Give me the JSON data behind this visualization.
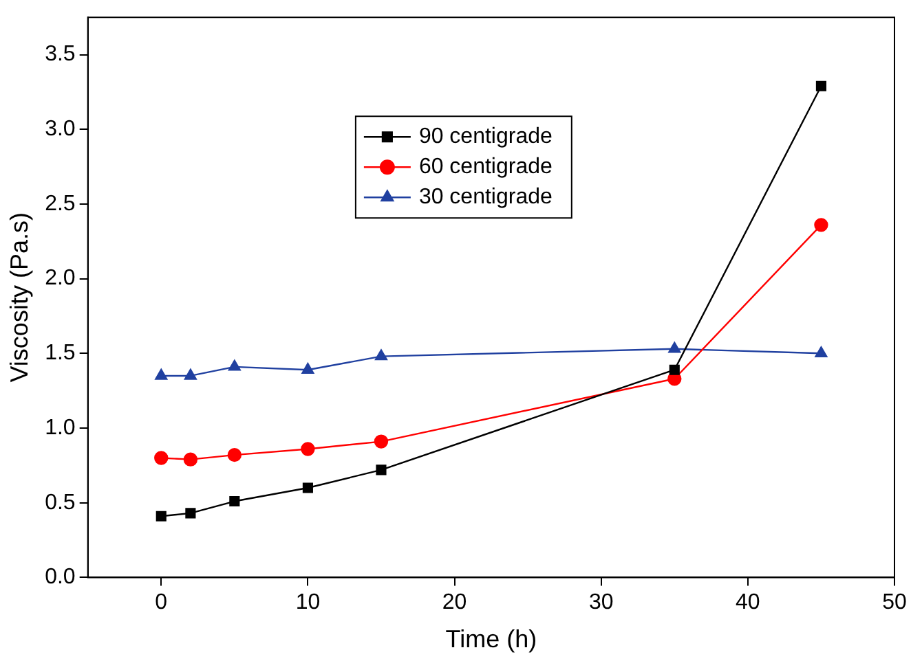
{
  "chart_data": {
    "type": "line",
    "xlabel": "Time (h)",
    "ylabel": "Viscosity (Pa.s)",
    "x": [
      0,
      2,
      5,
      10,
      15,
      35,
      45
    ],
    "series": [
      {
        "name": "90 centigrade",
        "color": "#000000",
        "marker": "square",
        "values": [
          0.41,
          0.43,
          0.51,
          0.6,
          0.72,
          1.39,
          3.29
        ]
      },
      {
        "name": "60 centigrade",
        "color": "#ff0000",
        "marker": "circle",
        "values": [
          0.8,
          0.79,
          0.82,
          0.86,
          0.91,
          1.33,
          2.36
        ]
      },
      {
        "name": "30 centigrade",
        "color": "#2040a0",
        "marker": "triangle",
        "values": [
          1.35,
          1.35,
          1.41,
          1.39,
          1.48,
          1.53,
          1.5
        ]
      }
    ],
    "xlim": [
      -5,
      50
    ],
    "xticks": [
      0,
      10,
      20,
      30,
      40,
      50
    ],
    "ylim": [
      0,
      3.75
    ],
    "yticks": [
      {
        "value": 0,
        "label": "0.0"
      },
      0.5,
      {
        "value": 1,
        "label": "1.0"
      },
      1.5,
      {
        "value": 2,
        "label": "2.0"
      },
      2.5,
      {
        "value": 3,
        "label": "3.0"
      },
      3.5
    ],
    "grid": false,
    "legend": "top",
    "line_style": "solid"
  }
}
